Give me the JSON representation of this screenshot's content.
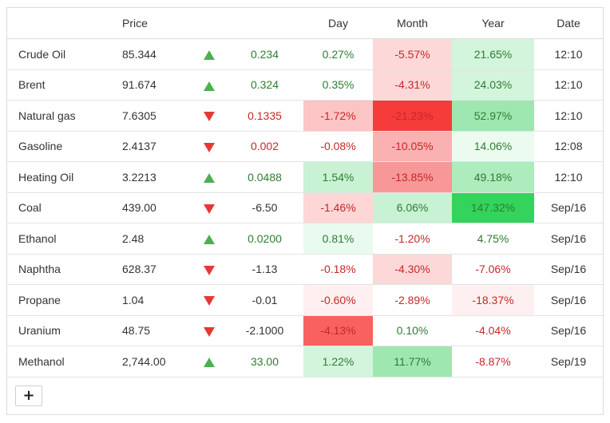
{
  "headers": [
    "",
    "Price",
    "",
    "",
    "Day",
    "Month",
    "Year",
    "Date"
  ],
  "rows": [
    {
      "name": "Crude Oil",
      "price": "85.344",
      "dir": "up",
      "change": "0.234",
      "day": "0.27%",
      "month": "-5.57%",
      "year": "21.65%",
      "date": "12:10",
      "day_bg": "#ffffff",
      "month_bg": "#fdd8d8",
      "year_bg": "#d3f5dc"
    },
    {
      "name": "Brent",
      "price": "91.674",
      "dir": "up",
      "change": "0.324",
      "day": "0.35%",
      "month": "-4.31%",
      "year": "24.03%",
      "date": "12:10",
      "day_bg": "#ffffff",
      "month_bg": "#fdd8d8",
      "year_bg": "#d3f5dc"
    },
    {
      "name": "Natural gas",
      "price": "7.6305",
      "dir": "down",
      "change": "0.1335",
      "day": "-1.72%",
      "month": "-21.23%",
      "year": "52.97%",
      "date": "12:10",
      "day_bg": "#fcc5c5",
      "month_bg": "#f63b3b",
      "year_bg": "#9fe7b1"
    },
    {
      "name": "Gasoline",
      "price": "2.4137",
      "dir": "down",
      "change": "0.002",
      "day": "-0.08%",
      "month": "-10.05%",
      "year": "14.06%",
      "date": "12:08",
      "day_bg": "#ffffff",
      "month_bg": "#fab1b1",
      "year_bg": "#ecfbf0"
    },
    {
      "name": "Heating Oil",
      "price": "3.2213",
      "dir": "up",
      "change": "0.0488",
      "day": "1.54%",
      "month": "-13.85%",
      "year": "49.18%",
      "date": "12:10",
      "day_bg": "#c8f2d3",
      "month_bg": "#f89797",
      "year_bg": "#aeebbd"
    },
    {
      "name": "Coal",
      "price": "439.00",
      "dir": "down",
      "change": "-6.50",
      "day": "-1.46%",
      "month": "6.06%",
      "year": "147.32%",
      "date": "Sep/16",
      "day_bg": "#fdd6d6",
      "month_bg": "#c8f2d3",
      "year_bg": "#33d35c"
    },
    {
      "name": "Ethanol",
      "price": "2.48",
      "dir": "up",
      "change": "0.0200",
      "day": "0.81%",
      "month": "-1.20%",
      "year": "4.75%",
      "date": "Sep/16",
      "day_bg": "#e9faee",
      "month_bg": "#ffffff",
      "year_bg": "#ffffff"
    },
    {
      "name": "Naphtha",
      "price": "628.37",
      "dir": "down",
      "change": "-1.13",
      "day": "-0.18%",
      "month": "-4.30%",
      "year": "-7.06%",
      "date": "Sep/16",
      "day_bg": "#ffffff",
      "month_bg": "#fdd8d8",
      "year_bg": "#ffffff"
    },
    {
      "name": "Propane",
      "price": "1.04",
      "dir": "down",
      "change": "-0.01",
      "day": "-0.60%",
      "month": "-2.89%",
      "year": "-18.37%",
      "date": "Sep/16",
      "day_bg": "#fef0f0",
      "month_bg": "#ffffff",
      "year_bg": "#fef0f0"
    },
    {
      "name": "Uranium",
      "price": "48.75",
      "dir": "down",
      "change": "-2.1000",
      "day": "-4.13%",
      "month": "0.10%",
      "year": "-4.04%",
      "date": "Sep/16",
      "day_bg": "#f96060",
      "month_bg": "#ffffff",
      "year_bg": "#ffffff"
    },
    {
      "name": "Methanol",
      "price": "2,744.00",
      "dir": "up",
      "change": "33.00",
      "day": "1.22%",
      "month": "11.77%",
      "year": "-8.87%",
      "date": "Sep/19",
      "day_bg": "#d3f5dc",
      "month_bg": "#9fe7b1",
      "year_bg": "#ffffff"
    }
  ],
  "add_button_label": "+",
  "colors": {
    "up_arrow": "#4caf50",
    "down_arrow": "#e53935",
    "up_text": "#2e7d32",
    "down_text": "#c62828"
  }
}
